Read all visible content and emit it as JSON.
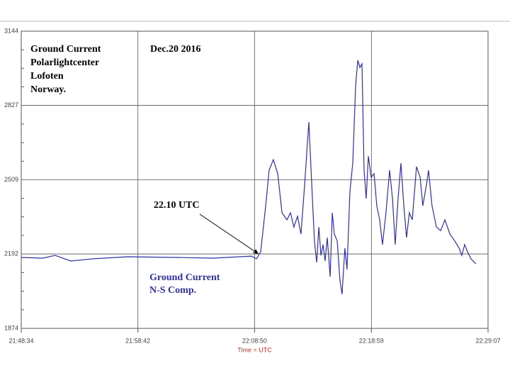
{
  "chart_data": {
    "type": "line",
    "title": [
      "Ground Current",
      "Polarlightcenter",
      "Lofoten",
      "Norway."
    ],
    "subtitle": "Dec.20 2016",
    "annotation": "22.10 UTC",
    "xlabel": "Time = UTC",
    "xlim": [
      "21:48:34",
      "22:29:07"
    ],
    "xticks": [
      "21:48:34",
      "21:58:42",
      "22:08:50",
      "22:18:59",
      "22:29:07"
    ],
    "ylim": [
      1874,
      3144
    ],
    "yticks": [
      1874,
      2192,
      2509,
      2827,
      3144
    ],
    "grid": true,
    "x": [
      "21:48:34",
      "21:50:25",
      "21:51:31",
      "21:52:52",
      "21:54:43",
      "21:57:48",
      "22:02:06",
      "22:05:11",
      "22:08:34",
      "22:09:00",
      "22:09:22",
      "22:09:48",
      "22:10:06",
      "22:10:28",
      "22:10:51",
      "22:11:13",
      "22:11:39",
      "22:11:57",
      "22:12:15",
      "22:12:34",
      "22:12:52",
      "22:13:11",
      "22:13:33",
      "22:13:48",
      "22:14:02",
      "22:14:14",
      "22:14:25",
      "22:14:36",
      "22:14:47",
      "22:14:58",
      "22:15:09",
      "22:15:24",
      "22:15:35",
      "22:15:46",
      "22:16:01",
      "22:16:15",
      "22:16:26",
      "22:16:41",
      "22:16:52",
      "22:17:07",
      "22:17:22",
      "22:17:37",
      "22:17:48",
      "22:17:59",
      "22:18:10",
      "22:18:21",
      "22:18:32",
      "22:18:43",
      "22:18:58",
      "22:19:13",
      "22:19:27",
      "22:19:42",
      "22:19:57",
      "22:20:15",
      "22:20:34",
      "22:20:49",
      "22:21:03",
      "22:21:18",
      "22:21:33",
      "22:21:48",
      "22:22:02",
      "22:22:17",
      "22:22:32",
      "22:22:54",
      "22:23:13",
      "22:23:27",
      "22:23:46",
      "22:23:57",
      "22:24:15",
      "22:24:38",
      "22:25:00",
      "22:25:22",
      "22:25:48",
      "22:26:14",
      "22:26:36",
      "22:26:50",
      "22:27:05",
      "22:27:20",
      "22:27:38",
      "22:28:04"
    ],
    "series": [
      {
        "name": [
          "Ground Current",
          "N-S Comp."
        ],
        "color": "#2f2fa8",
        "values": [
          2177,
          2174,
          2186,
          2162,
          2171,
          2180,
          2177,
          2174,
          2183,
          2171,
          2201,
          2398,
          2550,
          2595,
          2535,
          2368,
          2338,
          2368,
          2307,
          2353,
          2277,
          2489,
          2756,
          2489,
          2247,
          2156,
          2307,
          2186,
          2232,
          2162,
          2262,
          2095,
          2368,
          2277,
          2247,
          2080,
          2020,
          2217,
          2126,
          2459,
          2580,
          2914,
          3020,
          2989,
          3005,
          2550,
          2429,
          2610,
          2520,
          2535,
          2398,
          2338,
          2232,
          2368,
          2550,
          2429,
          2232,
          2429,
          2580,
          2398,
          2262,
          2368,
          2338,
          2565,
          2520,
          2398,
          2489,
          2550,
          2398,
          2307,
          2292,
          2338,
          2277,
          2247,
          2217,
          2186,
          2232,
          2201,
          2171,
          2150
        ]
      }
    ]
  }
}
